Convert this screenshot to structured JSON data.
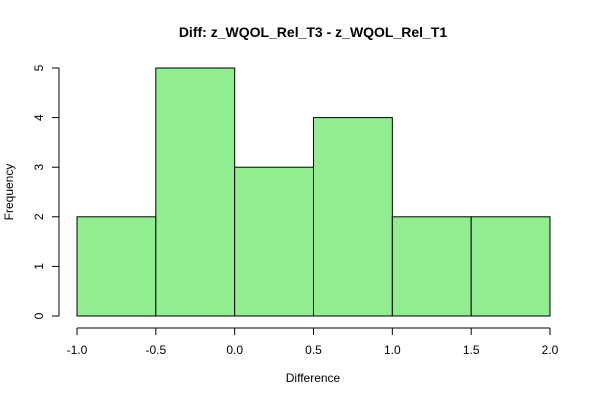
{
  "chart_data": {
    "type": "bar",
    "title": "Diff: z_WQOL_Rel_T3 - z_WQOL_Rel_T1",
    "xlabel": "Difference",
    "ylabel": "Frequency",
    "bins": [
      {
        "from": -1.0,
        "to": -0.5,
        "count": 2
      },
      {
        "from": -0.5,
        "to": 0.0,
        "count": 5
      },
      {
        "from": 0.0,
        "to": 0.5,
        "count": 3
      },
      {
        "from": 0.5,
        "to": 1.0,
        "count": 4
      },
      {
        "from": 1.0,
        "to": 1.5,
        "count": 2
      },
      {
        "from": 1.5,
        "to": 2.0,
        "count": 2
      }
    ],
    "xlim": [
      -1.0,
      2.0
    ],
    "ylim": [
      0,
      5
    ],
    "x_ticks": [
      {
        "value": -1.0,
        "label": "-1.0"
      },
      {
        "value": -0.5,
        "label": "-0.5"
      },
      {
        "value": 0.0,
        "label": "0.0"
      },
      {
        "value": 0.5,
        "label": "0.5"
      },
      {
        "value": 1.0,
        "label": "1.0"
      },
      {
        "value": 1.5,
        "label": "1.5"
      },
      {
        "value": 2.0,
        "label": "2.0"
      }
    ],
    "y_ticks": [
      {
        "value": 0,
        "label": "0"
      },
      {
        "value": 1,
        "label": "1"
      },
      {
        "value": 2,
        "label": "2"
      },
      {
        "value": 3,
        "label": "3"
      },
      {
        "value": 4,
        "label": "4"
      },
      {
        "value": 5,
        "label": "5"
      }
    ],
    "bar_color": "#90EE90",
    "grid": false
  }
}
